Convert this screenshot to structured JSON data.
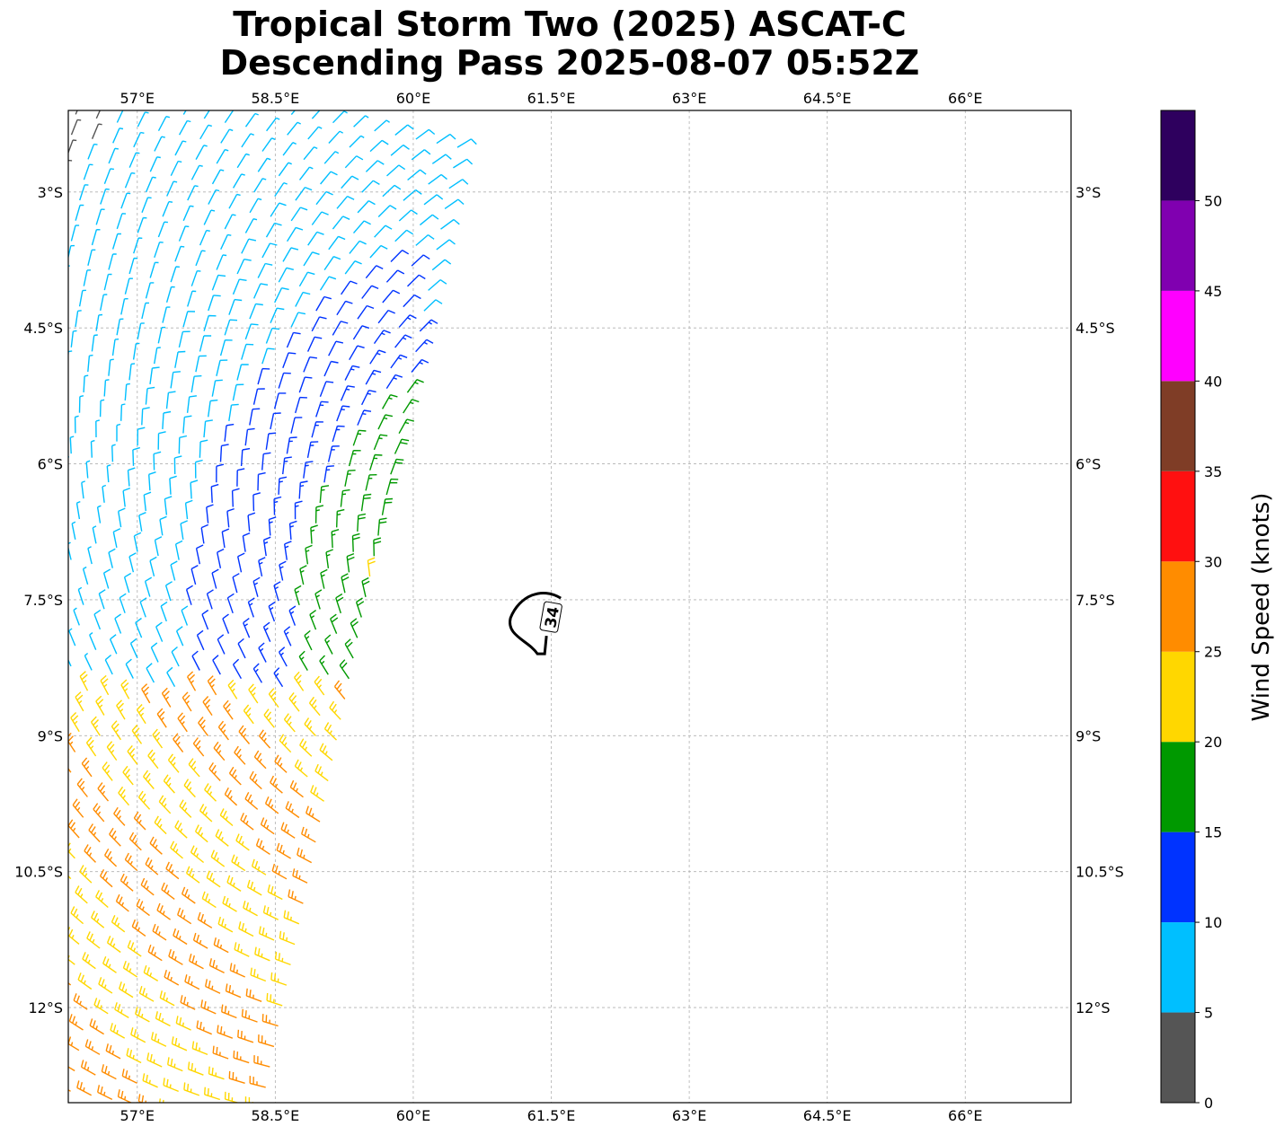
{
  "chart_data": {
    "type": "wind-barb-map",
    "title": "Tropical Storm Two (2025) ASCAT-C",
    "subtitle": "Descending Pass 2025-08-07 05:52Z",
    "x_ticks": [
      "57°E",
      "58.5°E",
      "60°E",
      "61.5°E",
      "63°E",
      "64.5°E",
      "66°E"
    ],
    "x_tick_values": [
      57,
      58.5,
      60,
      61.5,
      63,
      64.5,
      66
    ],
    "y_ticks": [
      "3°S",
      "4.5°S",
      "6°S",
      "7.5°S",
      "9°S",
      "10.5°S",
      "12°S"
    ],
    "y_tick_values": [
      -3,
      -4.5,
      -6,
      -7.5,
      -9,
      -10.5,
      -12
    ],
    "lon_range": [
      56.25,
      67.15
    ],
    "lat_range": [
      -13.05,
      -2.1
    ],
    "grid": true,
    "contour": {
      "level": 34,
      "label": "34",
      "color": "#000000",
      "center_lon": 61.35,
      "center_lat": -7.75
    },
    "swath": {
      "start_lon": 58.45,
      "start_lat": -2.1,
      "end_lon": 56.25,
      "end_lat": -13.05,
      "width_deg": 4.6
    },
    "colorbar": {
      "label": "Wind Speed (knots)",
      "ticks": [
        "0",
        "5",
        "10",
        "15",
        "20",
        "25",
        "30",
        "35",
        "40",
        "45",
        "50"
      ],
      "bounds": [
        0,
        5,
        10,
        15,
        20,
        25,
        30,
        35,
        40,
        45,
        50,
        55
      ],
      "colors": [
        "#555555",
        "#00bfff",
        "#0033ff",
        "#009900",
        "#ffd700",
        "#ff8c00",
        "#ff1010",
        "#7f3d26",
        "#ff00ff",
        "#8000b0",
        "#2e005e"
      ]
    }
  }
}
